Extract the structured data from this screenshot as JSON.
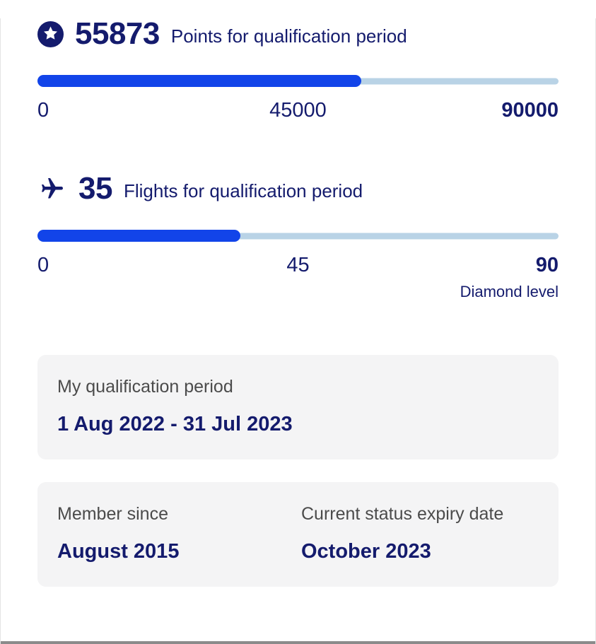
{
  "theme": {
    "navy": "#141b6d",
    "blue": "#1244e9",
    "track": "#b9d3e6",
    "card_bg": "#f4f4f5",
    "gray_text": "#4b4b4b",
    "divider": "#8b8b8b",
    "edge": "#e4e4e4"
  },
  "points": {
    "value": "55873",
    "label": "Points for qualification period",
    "progress_pct": 62.1,
    "scale": {
      "min": "0",
      "mid": "45000",
      "max": "90000"
    }
  },
  "flights": {
    "value": "35",
    "label": "Flights for qualification period",
    "progress_pct": 38.9,
    "scale": {
      "min": "0",
      "mid": "45",
      "max": "90"
    },
    "max_note": "Diamond level"
  },
  "qualification_period": {
    "label": "My qualification period",
    "value": "1 Aug 2022 - 31 Jul 2023"
  },
  "membership": {
    "member_since_label": "Member since",
    "member_since_value": "August 2015",
    "expiry_label": "Current status expiry date",
    "expiry_value": "October 2023"
  }
}
